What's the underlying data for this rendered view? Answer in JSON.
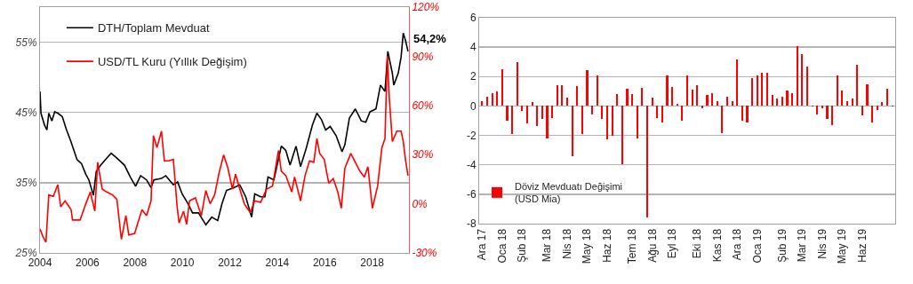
{
  "chart_data": [
    {
      "type": "line",
      "xlim": [
        2004,
        2019.55
      ],
      "xticks": [
        2004,
        2006,
        2008,
        2010,
        2012,
        2014,
        2016,
        2018
      ],
      "ylim": [
        25,
        60
      ],
      "yticks": [
        {
          "value": 25,
          "label": "25%"
        },
        {
          "value": 35,
          "label": "35%"
        },
        {
          "value": 45,
          "label": "45%"
        },
        {
          "value": 55,
          "label": "55%"
        }
      ],
      "y2lim": [
        -30,
        120
      ],
      "y2ticks": [
        {
          "value": -30,
          "label": "-30%"
        },
        {
          "value": 0,
          "label": "0%"
        },
        {
          "value": 30,
          "label": "30%"
        },
        {
          "value": 60,
          "label": "60%"
        },
        {
          "value": 90,
          "label": "90%"
        },
        {
          "value": 120,
          "label": "120%"
        }
      ],
      "grid": "y",
      "legend": "top left",
      "annotations": [
        {
          "text": "54,2%",
          "x": 2019.5,
          "y": 54.2
        }
      ],
      "series": [
        {
          "name": "DTH/Toplam Mevduat",
          "color": "#000000",
          "x": [
            2004.0,
            2004.04,
            2004.19,
            2004.29,
            2004.37,
            2004.5,
            2004.62,
            2004.75,
            2004.94,
            2005.12,
            2005.31,
            2005.56,
            2005.75,
            2005.93,
            2006.06,
            2006.25,
            2006.37,
            2006.56,
            2006.81,
            2007.0,
            2007.24,
            2007.56,
            2007.81,
            2008.03,
            2008.24,
            2008.49,
            2008.68,
            2008.8,
            2009.12,
            2009.3,
            2009.62,
            2009.8,
            2009.99,
            2010.24,
            2010.43,
            2010.68,
            2010.99,
            2011.24,
            2011.49,
            2011.67,
            2011.86,
            2012.17,
            2012.42,
            2012.67,
            2012.92,
            2013.05,
            2013.3,
            2013.48,
            2013.61,
            2013.86,
            2014.17,
            2014.36,
            2014.54,
            2014.79,
            2014.98,
            2015.23,
            2015.48,
            2015.67,
            2015.86,
            2016.04,
            2016.23,
            2016.48,
            2016.73,
            2016.85,
            2017.04,
            2017.29,
            2017.54,
            2017.73,
            2017.91,
            2018.16,
            2018.35,
            2018.54,
            2018.66,
            2018.85,
            2018.91,
            2019.1,
            2019.22,
            2019.31,
            2019.41,
            2019.51
          ],
          "values": [
            48.0,
            44.9,
            43.2,
            42.5,
            44.9,
            43.8,
            45.1,
            44.9,
            44.4,
            42.5,
            40.8,
            38.3,
            37.7,
            36.2,
            35.4,
            33.2,
            36.6,
            37.5,
            38.5,
            39.2,
            38.5,
            37.5,
            35.8,
            34.5,
            36.0,
            35.4,
            34.3,
            35.4,
            35.6,
            36.0,
            34.7,
            35.1,
            33.4,
            32.0,
            30.7,
            30.7,
            29.0,
            30.1,
            29.6,
            32.0,
            33.9,
            34.3,
            34.7,
            33.0,
            30.1,
            33.4,
            33.0,
            33.0,
            35.8,
            35.4,
            40.2,
            39.6,
            37.5,
            40.2,
            37.3,
            40.0,
            43.2,
            44.9,
            44.0,
            42.5,
            43.0,
            41.7,
            39.4,
            40.4,
            44.2,
            45.5,
            43.8,
            43.6,
            45.1,
            45.5,
            48.9,
            48.0,
            53.7,
            50.6,
            48.9,
            50.6,
            52.9,
            56.3,
            55.2,
            53.7
          ]
        },
        {
          "name": "USD/TL Kuru (Yıllık Değişim)",
          "color": "#ff0000",
          "axis": "y2",
          "x": [
            2004.0,
            2004.12,
            2004.25,
            2004.37,
            2004.56,
            2004.75,
            2004.87,
            2005.06,
            2005.31,
            2005.37,
            2005.69,
            2005.93,
            2006.12,
            2006.31,
            2006.43,
            2006.62,
            2006.81,
            2007.06,
            2007.24,
            2007.43,
            2007.62,
            2007.74,
            2007.99,
            2008.18,
            2008.3,
            2008.49,
            2008.68,
            2008.78,
            2008.93,
            2009.12,
            2009.24,
            2009.43,
            2009.62,
            2009.78,
            2009.86,
            2010.05,
            2010.18,
            2010.3,
            2010.55,
            2010.8,
            2010.99,
            2011.17,
            2011.36,
            2011.55,
            2011.74,
            2011.92,
            2012.11,
            2012.24,
            2012.42,
            2012.61,
            2012.86,
            2013.05,
            2013.3,
            2013.55,
            2013.8,
            2014.05,
            2014.17,
            2014.36,
            2014.61,
            2014.73,
            2014.98,
            2015.17,
            2015.36,
            2015.54,
            2015.67,
            2015.79,
            2015.98,
            2016.17,
            2016.36,
            2016.55,
            2016.7,
            2016.85,
            2017.1,
            2017.29,
            2017.48,
            2017.67,
            2017.82,
            2018.01,
            2018.23,
            2018.41,
            2018.54,
            2018.64,
            2018.72,
            2018.85,
            2019.04,
            2019.22,
            2019.31,
            2019.41,
            2019.51
          ],
          "values": [
            -15.4,
            -19.9,
            -23.5,
            5.4,
            4.5,
            11.7,
            -1.8,
            1.8,
            -3.6,
            -9.9,
            -9.9,
            0.0,
            7.2,
            -4.5,
            25.3,
            9.0,
            7.2,
            5.4,
            2.7,
            -21.7,
            -7.2,
            -19.0,
            -18.1,
            -9.0,
            -3.6,
            -7.2,
            1.8,
            41.6,
            34.3,
            44.3,
            26.2,
            26.2,
            27.1,
            -1.8,
            -11.7,
            -4.5,
            -12.6,
            1.8,
            3.6,
            -7.2,
            8.1,
            0.0,
            5.4,
            19.0,
            29.8,
            21.7,
            9.0,
            18.1,
            9.0,
            0.0,
            -5.4,
            1.8,
            0.9,
            9.0,
            10.8,
            32.5,
            19.9,
            17.2,
            7.2,
            16.3,
            1.8,
            17.2,
            26.2,
            25.3,
            39.8,
            30.7,
            27.1,
            12.6,
            15.4,
            7.2,
            -2.7,
            21.7,
            30.7,
            25.3,
            19.9,
            16.3,
            22.6,
            -2.7,
            10.8,
            34.3,
            39.8,
            90.4,
            65.1,
            38.0,
            44.3,
            44.3,
            38.0,
            26.2,
            17.2
          ]
        }
      ]
    },
    {
      "type": "bar",
      "categories": [
        "Ara 17",
        null,
        null,
        null,
        "Oca 18",
        null,
        null,
        null,
        "Şub 18",
        null,
        null,
        null,
        null,
        "Mar 18",
        null,
        null,
        null,
        "Nis 18",
        null,
        null,
        null,
        "May 18",
        null,
        null,
        null,
        "Haz 18",
        null,
        null,
        null,
        null,
        "Tem 18",
        null,
        null,
        null,
        "Ağu 18",
        null,
        null,
        null,
        "Eyl 18",
        null,
        null,
        null,
        null,
        "Eki 18",
        null,
        null,
        null,
        "Kas 18",
        null,
        null,
        null,
        "Ara 18",
        null,
        null,
        null,
        "Oca 19",
        null,
        null,
        null,
        null,
        "Şub 19",
        null,
        null,
        null,
        "Mar 19",
        null,
        null,
        null,
        "Nis 19",
        null,
        null,
        null,
        "May 19",
        null,
        null,
        null,
        "Haz 19",
        null,
        null,
        null,
        null,
        null,
        null
      ],
      "ylim": [
        -8,
        6
      ],
      "yticks": [
        -8,
        -6,
        -4,
        -2,
        0,
        2,
        4,
        6
      ],
      "grid": "y",
      "legend": "bottom left",
      "series": [
        {
          "name": "Döviz Mevduatı Değişimi\n(USD Mia)",
          "color": "#ff0000",
          "values": [
            0.3,
            0.6,
            0.9,
            1.0,
            2.5,
            -1.0,
            -1.9,
            3.0,
            -0.35,
            -1.2,
            0.25,
            -1.35,
            -0.9,
            -2.2,
            -0.8,
            1.4,
            1.4,
            0.55,
            -3.4,
            1.35,
            -1.9,
            2.45,
            -0.6,
            2.1,
            -0.9,
            -2.25,
            -2.0,
            0.8,
            -3.95,
            1.15,
            0.8,
            -2.2,
            1.25,
            -7.6,
            0.55,
            -0.8,
            -1.15,
            2.1,
            1.3,
            0.15,
            -1.0,
            2.1,
            1.1,
            1.4,
            -0.15,
            0.75,
            0.9,
            0.35,
            -1.85,
            0.65,
            0.35,
            3.15,
            -1.0,
            -1.15,
            1.9,
            2.05,
            2.25,
            2.25,
            0.75,
            0.5,
            0.6,
            1.05,
            0.85,
            4.05,
            3.5,
            2.7,
            -0.05,
            -0.55,
            -0.15,
            -0.85,
            -1.3,
            2.1,
            1.05,
            0.35,
            0.5,
            2.8,
            -0.65,
            1.45,
            -1.1,
            -0.25,
            0.25,
            1.2,
            -0.05
          ]
        }
      ]
    }
  ]
}
